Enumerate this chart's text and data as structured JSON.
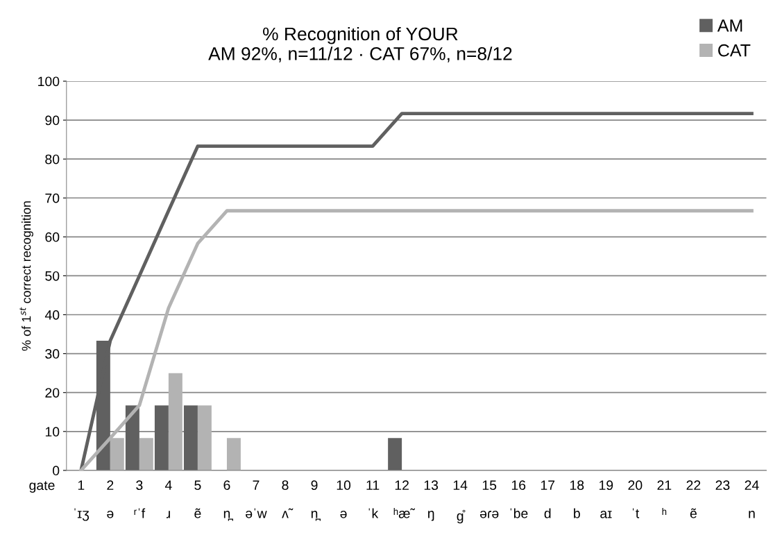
{
  "chart_data": {
    "type": "bar",
    "title": "% Recognition of YOUR\nAM 92%, n=11/12 · CAT 67%, n=8/12",
    "ylabel": "% of 1$^{st}$ correct recognition",
    "xlabel": "gate",
    "categories": [
      "1\nˈɪʒ",
      "2\nə",
      "3\nʳˈf",
      "4\nɹ",
      "5\nẽ",
      "6\nn̪",
      "7\nəˈw",
      "8\nʌ̃",
      "9\nn̪",
      "10\nə",
      "11\nˈk",
      "12\nʰæ̃",
      "13\nŋ",
      "14\ng̊",
      "15\nəɾə",
      "16\nˈbe",
      "17\nd",
      "18\nb",
      "19\naɪ",
      "20\nˈt",
      "21\nʰ",
      "22\nẽ",
      "23",
      "24\nn"
    ],
    "series": [
      {
        "name": "AM",
        "color": "#606060",
        "values": [
          0,
          33.3,
          16.7,
          16.7,
          16.7,
          0,
          0,
          0,
          0,
          0,
          0,
          8.3,
          0,
          0,
          0,
          0,
          0,
          0,
          0,
          0,
          0,
          0,
          0,
          0
        ]
      },
      {
        "name": "CAT",
        "color": "#b3b3b3",
        "values": [
          0,
          8.3,
          8.3,
          25,
          16.7,
          8.3,
          0,
          0,
          0,
          0,
          0,
          0,
          0,
          0,
          0,
          0,
          0,
          0,
          0,
          0,
          0,
          0,
          0,
          0
        ]
      },
      {
        "type": "line",
        "color": "#606060",
        "values": [
          0,
          33.3,
          50,
          66.7,
          83.3,
          83.3,
          83.3,
          83.3,
          83.3,
          83.3,
          83.3,
          91.7,
          91.7,
          91.7,
          91.7,
          91.7,
          91.7,
          91.7,
          91.7,
          91.7,
          91.7,
          91.7,
          91.7,
          91.7
        ]
      },
      {
        "type": "line",
        "color": "#b3b3b3",
        "values": [
          0,
          8.3,
          16.7,
          41.7,
          58.3,
          66.7,
          66.7,
          66.7,
          66.7,
          66.7,
          66.7,
          66.7,
          66.7,
          66.7,
          66.7,
          66.7,
          66.7,
          66.7,
          66.7,
          66.7,
          66.7,
          66.7,
          66.7,
          66.7
        ]
      }
    ],
    "ylim": [
      0,
      100
    ],
    "yticks": [
      0,
      10,
      20,
      30,
      40,
      50,
      60,
      70,
      80,
      90,
      100
    ],
    "grid": "y",
    "legend": "top right",
    "marker": "none",
    "line_style": "solid"
  }
}
